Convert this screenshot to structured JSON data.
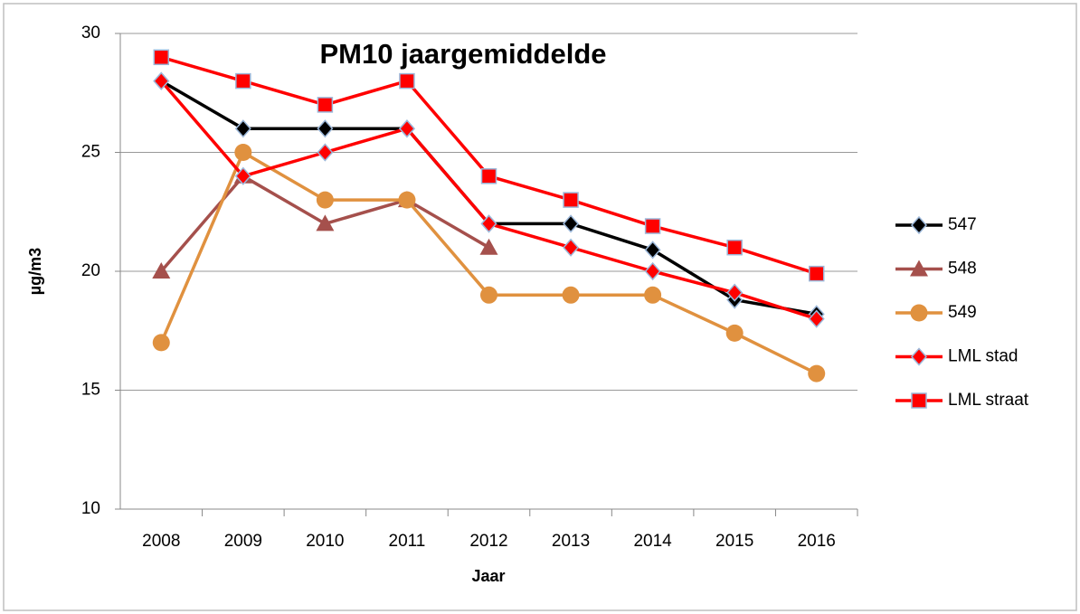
{
  "chart_data": {
    "type": "line",
    "title": "PM10 jaargemiddelde",
    "x_label": "Jaar",
    "y_label": "µg/m3",
    "categories": [
      "2008",
      "2009",
      "2010",
      "2011",
      "2012",
      "2013",
      "2014",
      "2015",
      "2016"
    ],
    "ylim": [
      10,
      30
    ],
    "yticks": [
      10,
      15,
      20,
      25,
      30
    ],
    "grid": true,
    "legend": "right",
    "series": [
      {
        "name": "547",
        "color": "#000000",
        "marker": "diamond",
        "values": [
          28,
          26,
          26,
          26,
          22,
          22,
          20.9,
          18.8,
          18.2
        ]
      },
      {
        "name": "548",
        "color": "#a5504c",
        "marker": "triangle",
        "values": [
          20,
          24,
          22,
          23,
          21,
          null,
          null,
          null,
          null
        ]
      },
      {
        "name": "549",
        "color": "#e0913f",
        "marker": "circle",
        "values": [
          17,
          25,
          23,
          23,
          19,
          19,
          19,
          17.4,
          15.7
        ]
      },
      {
        "name": "LML stad",
        "color": "#ff0000",
        "marker": "diamond",
        "values": [
          28,
          24,
          25,
          26,
          22,
          21,
          20,
          19.1,
          18
        ]
      },
      {
        "name": "LML straat",
        "color": "#ff0000",
        "marker": "square",
        "values": [
          29,
          28,
          27,
          28,
          24,
          23,
          21.9,
          21,
          19.9
        ]
      }
    ]
  }
}
